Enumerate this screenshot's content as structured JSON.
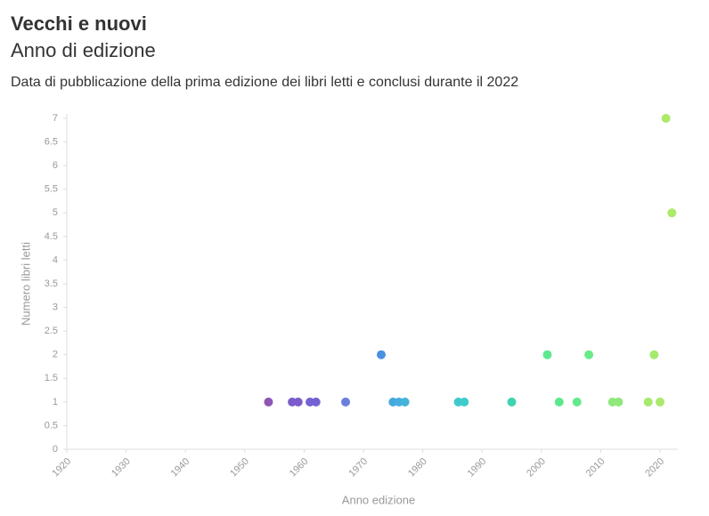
{
  "chart_data": {
    "type": "scatter",
    "title": "Vecchi e nuovi",
    "subtitle": "Anno di edizione",
    "description": "Data di pubblicazione della prima edizione dei libri letti e conclusi durante il 2022",
    "x_label": "Anno edizione",
    "y_label": "Numero libri letti",
    "xlim": [
      1920,
      2023
    ],
    "xticks": [
      1920,
      1930,
      1940,
      1950,
      1960,
      1970,
      1980,
      1990,
      2000,
      2010,
      2020
    ],
    "ylim": [
      0,
      7
    ],
    "yticks": [
      0,
      0.5,
      1,
      1.5,
      2,
      2.5,
      3,
      3.5,
      4,
      4.5,
      5,
      5.5,
      6,
      6.5,
      7
    ],
    "grid": false,
    "x": [
      1954,
      1958,
      1959,
      1961,
      1962,
      1967,
      1973,
      1975,
      1976,
      1977,
      1986,
      1987,
      1995,
      2001,
      2003,
      2006,
      2008,
      2012,
      2013,
      2018,
      2019,
      2020,
      2021,
      2022
    ],
    "values": [
      1,
      1,
      1,
      1,
      1,
      1,
      2,
      1,
      1,
      1,
      1,
      1,
      1,
      2,
      1,
      1,
      2,
      1,
      1,
      1,
      2,
      1,
      7,
      5
    ],
    "colors": [
      "#8e55b5",
      "#7b5ccc",
      "#7b5ccc",
      "#7462d2",
      "#7462d2",
      "#6a7fdc",
      "#4a90e2",
      "#46a8dc",
      "#46aede",
      "#46b3d9",
      "#3ec9cf",
      "#3ecbcb",
      "#3fd3b0",
      "#5ee88e",
      "#5ee88e",
      "#64e98a",
      "#6aea86",
      "#8ee87a",
      "#8ee87a",
      "#a5ea6d",
      "#a5ea6d",
      "#a9ea6c",
      "#acea6a",
      "#acea6a"
    ]
  }
}
